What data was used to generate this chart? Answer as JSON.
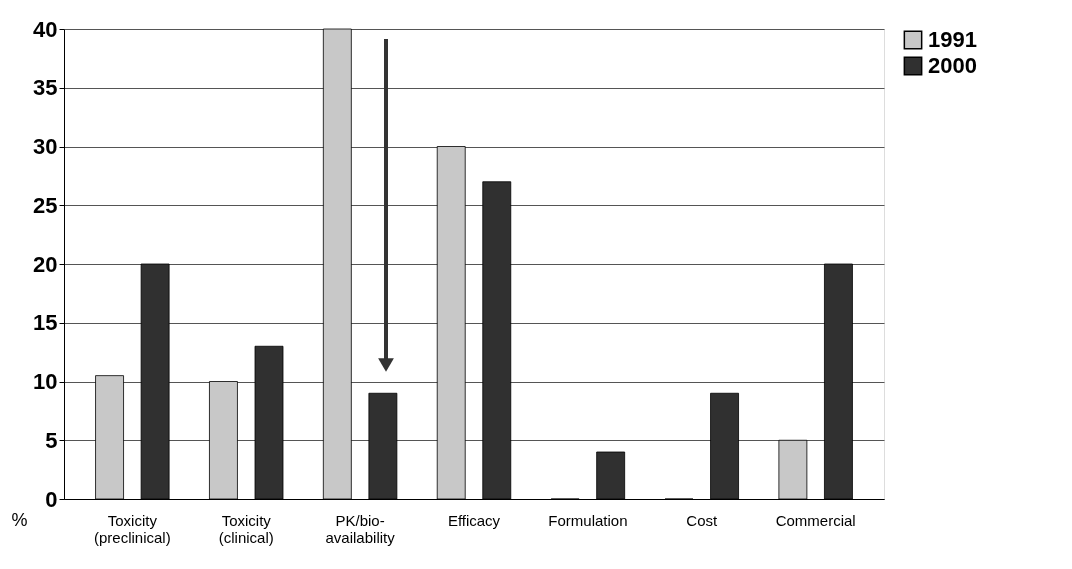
{
  "chart_data": {
    "type": "bar",
    "categories": [
      "Toxicity (preclinical)",
      "Toxicity (clinical)",
      "PK/bio-availability",
      "Efficacy",
      "Formulation",
      "Cost",
      "Commercial"
    ],
    "series": [
      {
        "name": "1991",
        "color": "#c8c8c8",
        "values": [
          10.5,
          10,
          40,
          30,
          0,
          0,
          5
        ]
      },
      {
        "name": "2000",
        "color": "#303030",
        "values": [
          20,
          13,
          9,
          27,
          4,
          9,
          20
        ]
      }
    ],
    "ylabel": "%",
    "ylim": [
      0,
      40
    ],
    "yticks": [
      0,
      5,
      10,
      15,
      20,
      25,
      30,
      35,
      40
    ],
    "grid": "y",
    "legend": "right"
  }
}
